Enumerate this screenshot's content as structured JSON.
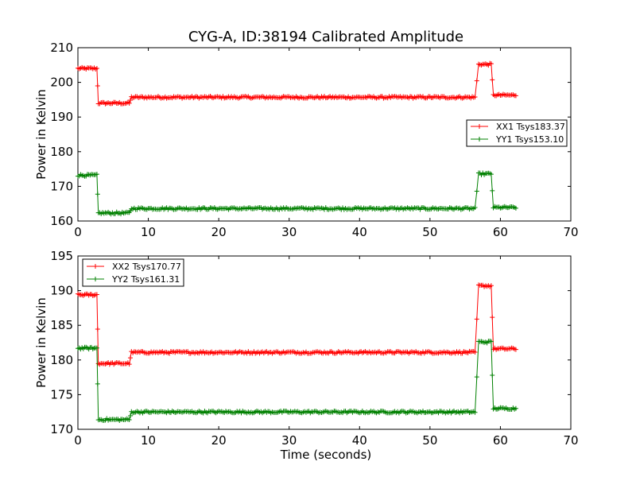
{
  "chart_data": [
    {
      "type": "line",
      "title": "CYG-A, ID:38194 Calibrated Amplitude",
      "xlabel": "",
      "ylabel": "Power in Kelvin",
      "xlim": [
        0,
        70
      ],
      "ylim": [
        160,
        210
      ],
      "xticks": [
        0,
        10,
        20,
        30,
        40,
        50,
        60,
        70
      ],
      "yticks": [
        160,
        170,
        180,
        190,
        200,
        210
      ],
      "grid": false,
      "legend": "center-right",
      "series": [
        {
          "name": "XX1 Tsys183.37",
          "color": "#ff0000",
          "segments": [
            {
              "from": 0,
              "to": 2.7,
              "value": 204.0
            },
            {
              "from": 2.9,
              "to": 7.3,
              "value": 194.0
            },
            {
              "from": 7.6,
              "to": 56.4,
              "value": 195.7
            },
            {
              "from": 56.9,
              "to": 58.7,
              "value": 205.2
            },
            {
              "from": 59.0,
              "to": 62.2,
              "value": 196.3
            }
          ]
        },
        {
          "name": "YY1 Tsys153.10",
          "color": "#008000",
          "segments": [
            {
              "from": 0,
              "to": 2.7,
              "value": 173.2
            },
            {
              "from": 2.9,
              "to": 7.3,
              "value": 162.3
            },
            {
              "from": 7.6,
              "to": 56.4,
              "value": 163.6
            },
            {
              "from": 56.9,
              "to": 58.7,
              "value": 173.6
            },
            {
              "from": 59.0,
              "to": 62.2,
              "value": 163.9
            }
          ]
        }
      ]
    },
    {
      "type": "line",
      "title": "",
      "xlabel": "Time (seconds)",
      "ylabel": "Power in Kelvin",
      "xlim": [
        0,
        70
      ],
      "ylim": [
        170,
        195
      ],
      "xticks": [
        0,
        10,
        20,
        30,
        40,
        50,
        60,
        70
      ],
      "yticks": [
        170,
        175,
        180,
        185,
        190,
        195
      ],
      "grid": false,
      "legend": "top-left",
      "series": [
        {
          "name": "XX2 Tsys170.77",
          "color": "#ff0000",
          "segments": [
            {
              "from": 0,
              "to": 2.7,
              "value": 189.4
            },
            {
              "from": 2.9,
              "to": 7.3,
              "value": 179.5
            },
            {
              "from": 7.6,
              "to": 56.4,
              "value": 181.1
            },
            {
              "from": 56.9,
              "to": 58.7,
              "value": 190.7
            },
            {
              "from": 59.0,
              "to": 62.2,
              "value": 181.6
            }
          ]
        },
        {
          "name": "YY2 Tsys161.31",
          "color": "#008000",
          "segments": [
            {
              "from": 0,
              "to": 2.7,
              "value": 181.7
            },
            {
              "from": 2.9,
              "to": 7.3,
              "value": 171.4
            },
            {
              "from": 7.6,
              "to": 56.4,
              "value": 172.5
            },
            {
              "from": 56.9,
              "to": 58.7,
              "value": 182.6
            },
            {
              "from": 59.0,
              "to": 62.2,
              "value": 173.0
            }
          ]
        }
      ]
    }
  ]
}
